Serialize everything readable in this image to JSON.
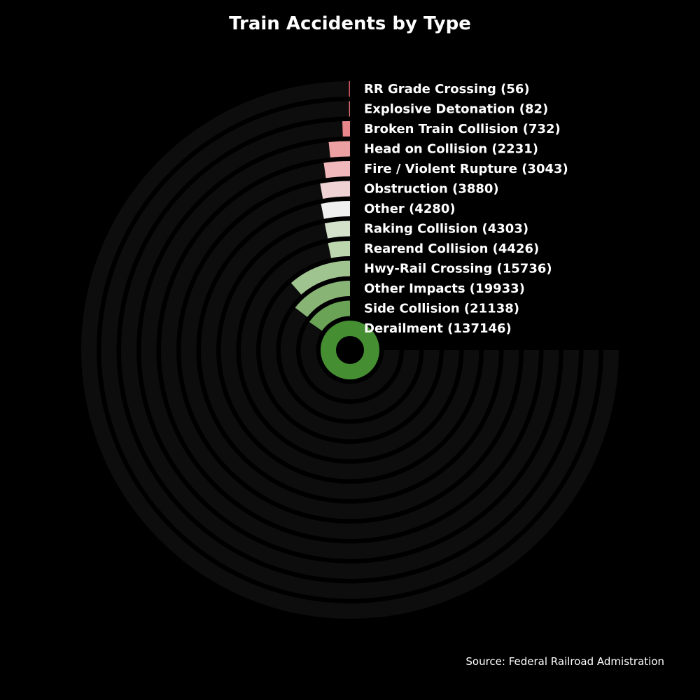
{
  "chart_data": {
    "type": "radial-bar",
    "title": "Train Accidents by Type",
    "source": "Source: Federal Railroad Admistration",
    "max_value": 137146,
    "background_color": "#000000",
    "track_color": "#0d0d0d",
    "categories": [
      {
        "name": "Derailment",
        "value": 137146,
        "label": "Derailment (137146)",
        "color": "#458f32"
      },
      {
        "name": "Side Collision",
        "value": 21138,
        "label": "Side Collision (21138)",
        "color": "#6aa356"
      },
      {
        "name": "Other Impacts",
        "value": 19933,
        "label": "Other Impacts (19933)",
        "color": "#88b475"
      },
      {
        "name": "Hwy-Rail Crossing",
        "value": 15736,
        "label": "Hwy-Rail Crossing (15736)",
        "color": "#a0c48f"
      },
      {
        "name": "Rearend Collision",
        "value": 4426,
        "label": "Rearend Collision (4426)",
        "color": "#bcd6ae"
      },
      {
        "name": "Raking Collision",
        "value": 4303,
        "label": "Raking Collision (4303)",
        "color": "#d3e1cb"
      },
      {
        "name": "Other",
        "value": 4280,
        "label": "Other (4280)",
        "color": "#f0f0f0"
      },
      {
        "name": "Obstruction",
        "value": 3880,
        "label": "Obstruction (3880)",
        "color": "#efd3d4"
      },
      {
        "name": "Fire / Violent Rupture",
        "value": 3043,
        "label": "Fire / Violent Rupture (3043)",
        "color": "#f0b8bb"
      },
      {
        "name": "Head on Collision",
        "value": 2231,
        "label": "Head on Collision (2231)",
        "color": "#eda0a2"
      },
      {
        "name": "Broken Train Collision",
        "value": 732,
        "label": "Broken Train Collision (732)",
        "color": "#e8868b"
      },
      {
        "name": "Explosive Detonation",
        "value": 82,
        "label": "Explosive Detonation (82)",
        "color": "#e26f75"
      },
      {
        "name": "RR Grade Crossing",
        "value": 56,
        "label": "RR Grade Crossing (56)",
        "color": "#d9585f"
      }
    ]
  }
}
